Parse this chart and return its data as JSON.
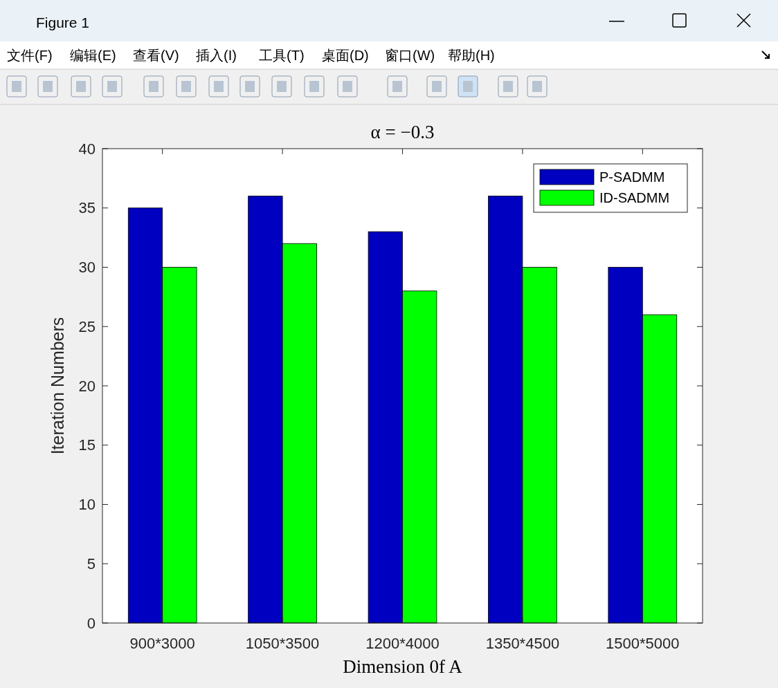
{
  "chart_data": {
    "type": "bar",
    "title": "α = −0.3",
    "xlabel": "Dimension 0f A",
    "ylabel": "Iteration Numbers",
    "categories": [
      "900*3000",
      "1050*3500",
      "1200*4000",
      "1350*4500",
      "1500*5000"
    ],
    "series": [
      {
        "name": "P-SADMM",
        "color": "#0000c0",
        "values": [
          35,
          36,
          33,
          36,
          30
        ]
      },
      {
        "name": "ID-SADMM",
        "color": "#00ff00",
        "values": [
          30,
          32,
          28,
          30,
          26
        ]
      }
    ],
    "ylim": [
      0,
      40
    ],
    "yticks": [
      0,
      5,
      10,
      15,
      20,
      25,
      30,
      35,
      40
    ],
    "grid": false,
    "legend": "top right",
    "annotations": [
      "Figure 1",
      "文件(F)",
      "编辑(E)",
      "查看(V)",
      "插入(I)",
      "工具(T)",
      "桌面(D)",
      "窗口(W)",
      "帮助(H)"
    ]
  }
}
